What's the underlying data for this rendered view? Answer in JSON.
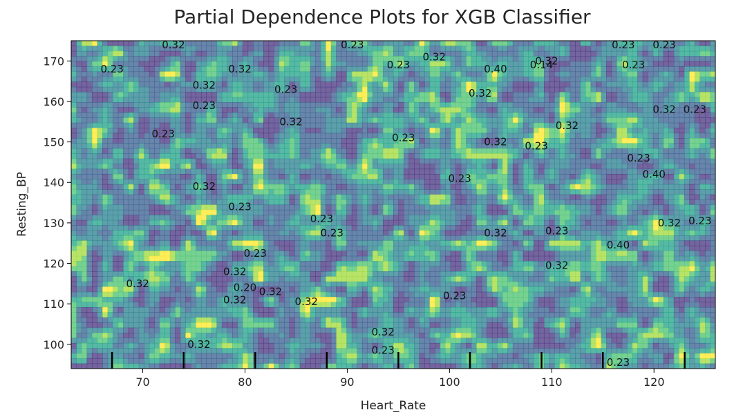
{
  "chart_data": {
    "type": "contour",
    "title": "Partial Dependence Plots for XGB Classifier",
    "xlabel": "Heart_Rate",
    "ylabel": "Resting_BP",
    "xlim": [
      63,
      126
    ],
    "ylim": [
      94,
      175
    ],
    "x_ticks": [
      70,
      80,
      90,
      100,
      110,
      120
    ],
    "y_ticks": [
      100,
      110,
      120,
      130,
      140,
      150,
      160,
      170
    ],
    "deciles": [
      67,
      74,
      81,
      88,
      95,
      102,
      109,
      115,
      123
    ],
    "levels": [
      0.14,
      0.2,
      0.23,
      0.32,
      0.4
    ],
    "colormap": [
      "#46327e",
      "#365c8d",
      "#277f8e",
      "#1fa187",
      "#4ac16d",
      "#a0da39",
      "#fde725"
    ],
    "alpha": 0.75,
    "contour_labels": [
      {
        "text": "0.32",
        "x": 73,
        "y": 174
      },
      {
        "text": "0.23",
        "x": 90.5,
        "y": 174
      },
      {
        "text": "0.32",
        "x": 98.5,
        "y": 171
      },
      {
        "text": "0.32",
        "x": 109.5,
        "y": 170
      },
      {
        "text": "0.23",
        "x": 117,
        "y": 174
      },
      {
        "text": "0.23",
        "x": 121,
        "y": 174
      },
      {
        "text": "0.23",
        "x": 67,
        "y": 168
      },
      {
        "text": "0.32",
        "x": 79.5,
        "y": 168
      },
      {
        "text": "0.23",
        "x": 95,
        "y": 169
      },
      {
        "text": "0.40",
        "x": 104.5,
        "y": 168
      },
      {
        "text": "0.14",
        "x": 109,
        "y": 169
      },
      {
        "text": "0.23",
        "x": 118,
        "y": 169
      },
      {
        "text": "0.32",
        "x": 76,
        "y": 164
      },
      {
        "text": "0.23",
        "x": 84,
        "y": 163
      },
      {
        "text": "0.32",
        "x": 103,
        "y": 162
      },
      {
        "text": "0.23",
        "x": 76,
        "y": 159
      },
      {
        "text": "0.32",
        "x": 84.5,
        "y": 155
      },
      {
        "text": "0.32",
        "x": 121,
        "y": 158
      },
      {
        "text": "0.23",
        "x": 124,
        "y": 158
      },
      {
        "text": "0.32",
        "x": 111.5,
        "y": 154
      },
      {
        "text": "0.23",
        "x": 72,
        "y": 152
      },
      {
        "text": "0.23",
        "x": 95.5,
        "y": 151
      },
      {
        "text": "0.32",
        "x": 104.5,
        "y": 150
      },
      {
        "text": "0.23",
        "x": 108.5,
        "y": 149
      },
      {
        "text": "0.23",
        "x": 118.5,
        "y": 146
      },
      {
        "text": "0.40",
        "x": 120,
        "y": 142
      },
      {
        "text": "0.23",
        "x": 101,
        "y": 141
      },
      {
        "text": "0.32",
        "x": 76,
        "y": 139
      },
      {
        "text": "0.23",
        "x": 79.5,
        "y": 134
      },
      {
        "text": "0.23",
        "x": 87.5,
        "y": 131
      },
      {
        "text": "0.23",
        "x": 88.5,
        "y": 127.5
      },
      {
        "text": "0.32",
        "x": 104.5,
        "y": 127.5
      },
      {
        "text": "0.23",
        "x": 110.5,
        "y": 128
      },
      {
        "text": "0.32",
        "x": 121.5,
        "y": 130
      },
      {
        "text": "0.23",
        "x": 124.5,
        "y": 130.5
      },
      {
        "text": "0.40",
        "x": 116.5,
        "y": 124.5
      },
      {
        "text": "0.23",
        "x": 81,
        "y": 122.5
      },
      {
        "text": "0.32",
        "x": 110.5,
        "y": 119.5
      },
      {
        "text": "0.32",
        "x": 79,
        "y": 118
      },
      {
        "text": "0.32",
        "x": 69.5,
        "y": 115
      },
      {
        "text": "0.20",
        "x": 80,
        "y": 114
      },
      {
        "text": "0.32",
        "x": 82.5,
        "y": 113
      },
      {
        "text": "0.32",
        "x": 79,
        "y": 111
      },
      {
        "text": "0.32",
        "x": 86,
        "y": 110.5
      },
      {
        "text": "0.23",
        "x": 100.5,
        "y": 112
      },
      {
        "text": "0.32",
        "x": 93.5,
        "y": 103
      },
      {
        "text": "0.23",
        "x": 93.5,
        "y": 98.5
      },
      {
        "text": "0.32",
        "x": 75.5,
        "y": 100
      },
      {
        "text": "0.23",
        "x": 116.5,
        "y": 95.5
      }
    ]
  }
}
